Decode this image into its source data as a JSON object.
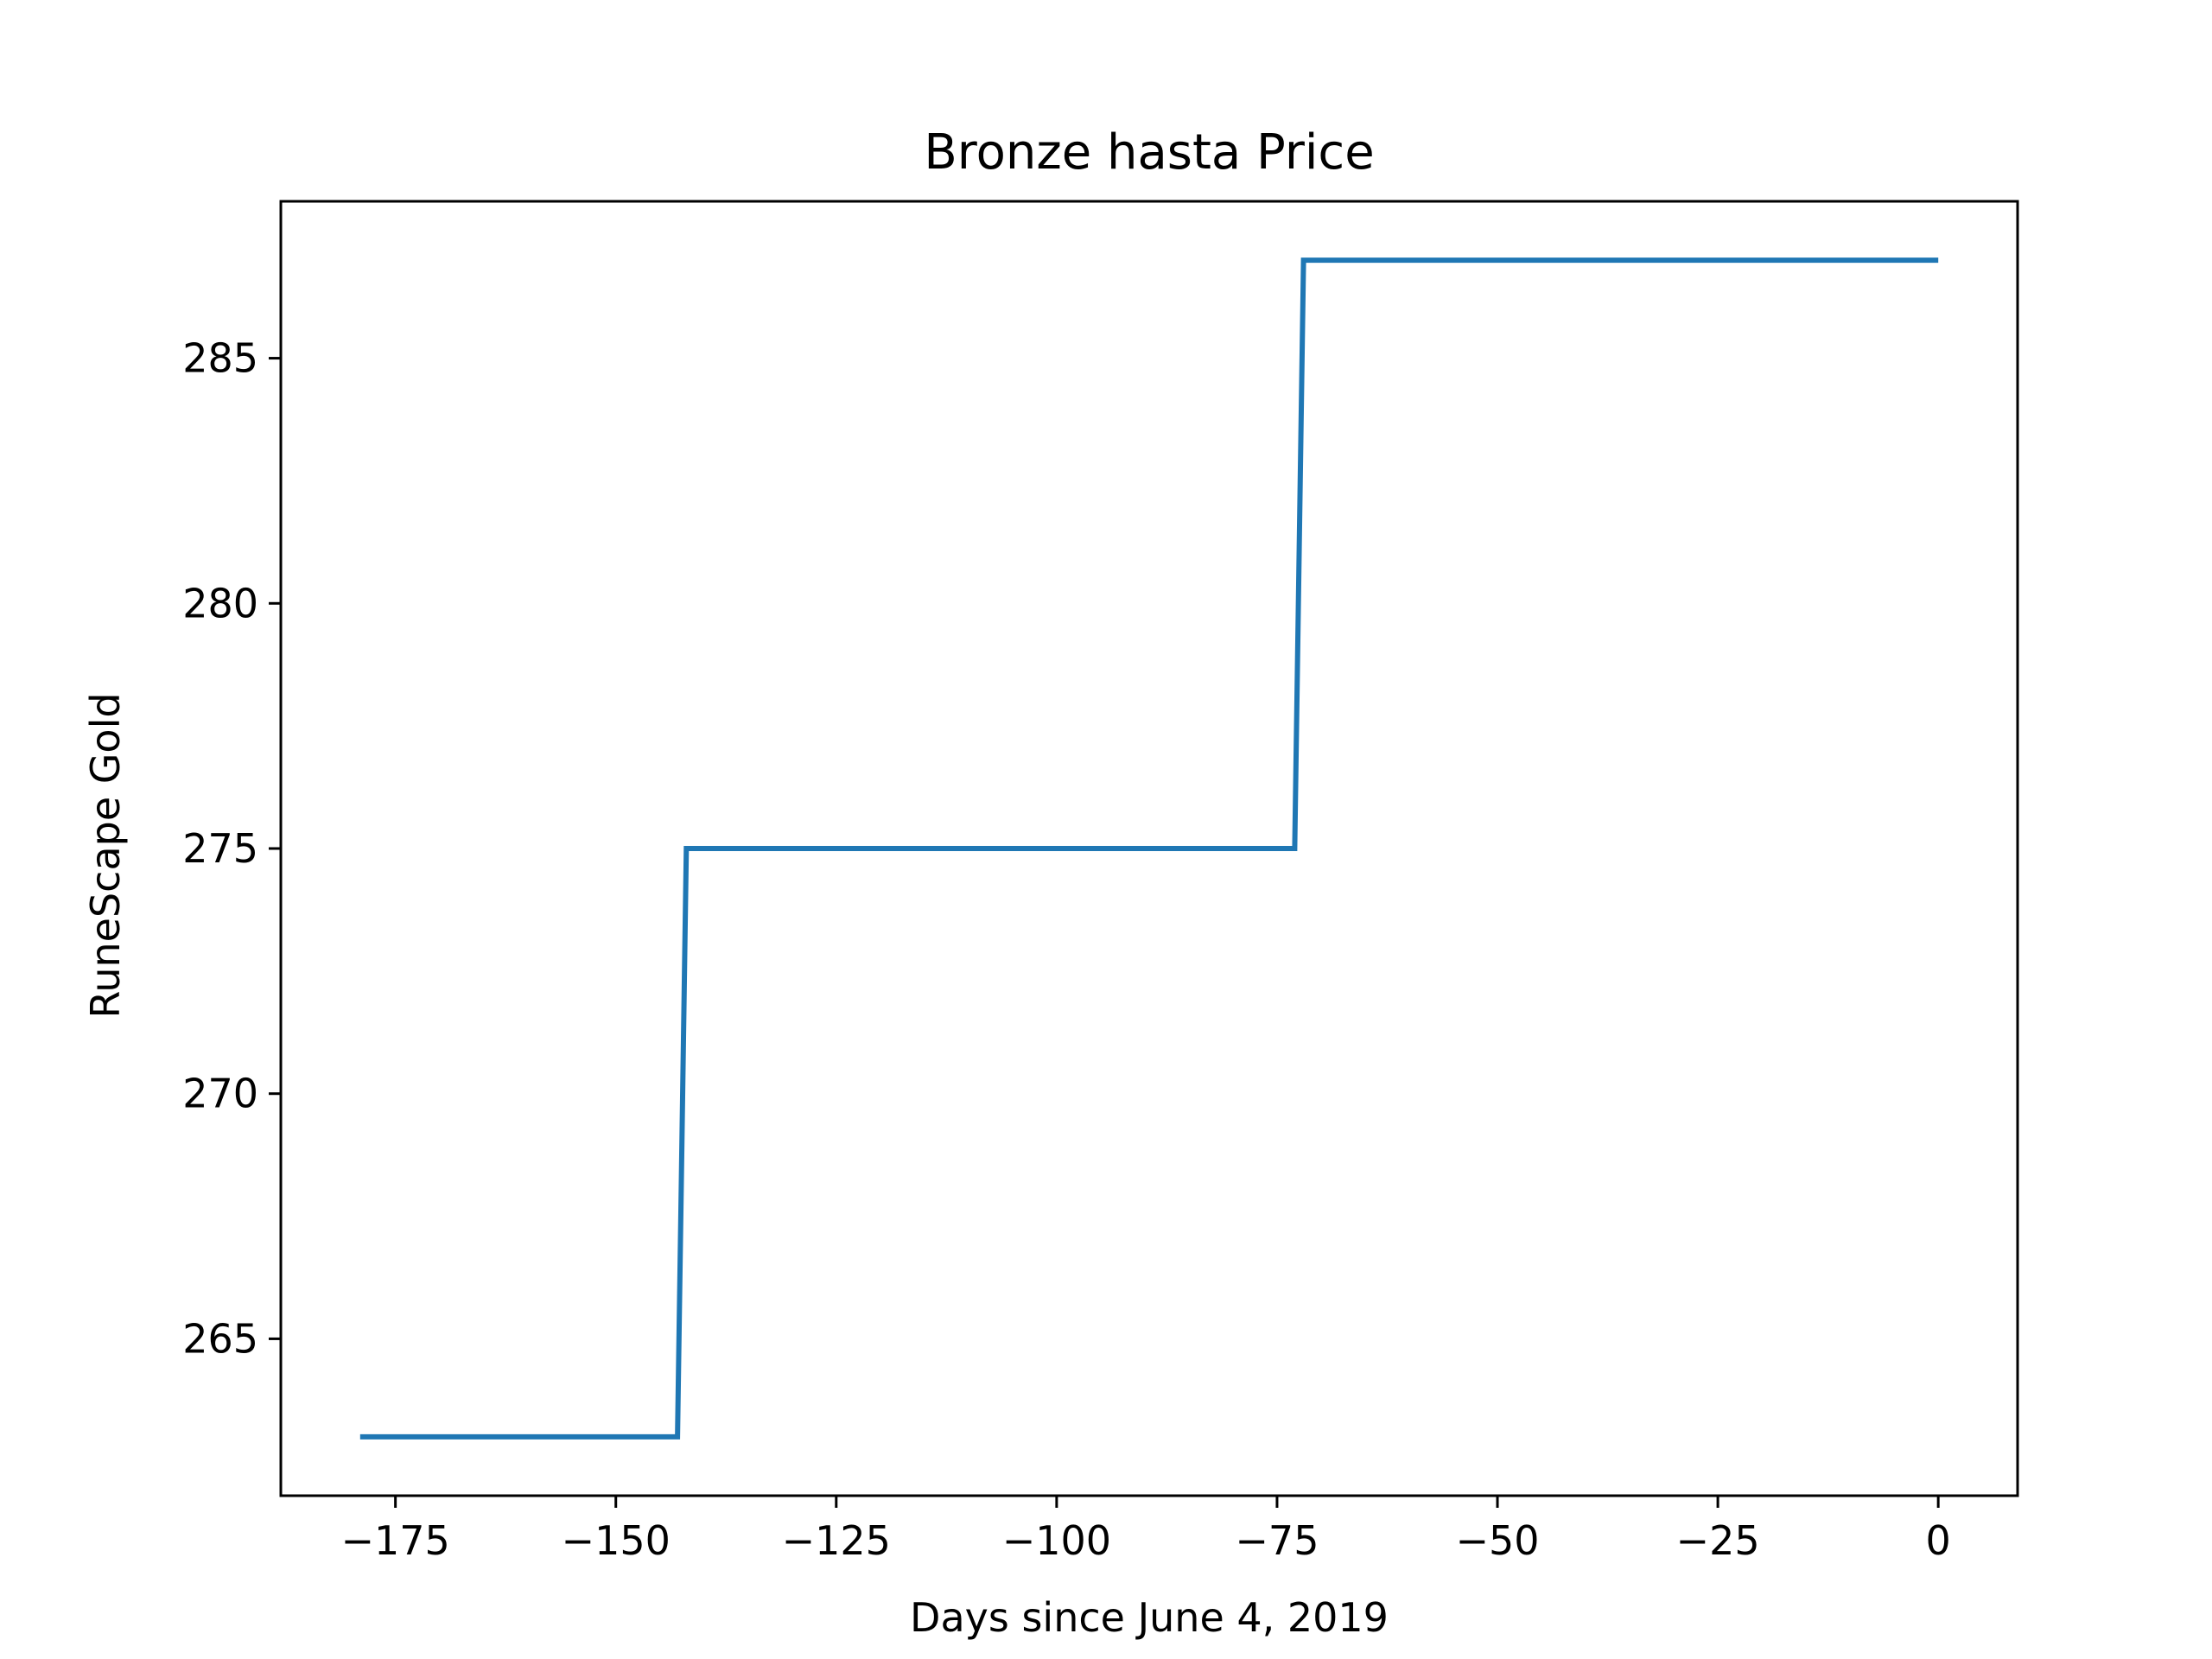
{
  "chart_data": {
    "type": "line",
    "title": "Bronze hasta Price",
    "xlabel": "Days since June 4, 2019",
    "ylabel": "RuneScape Gold",
    "xlim": [
      -188,
      9
    ],
    "ylim": [
      261.8,
      288.2
    ],
    "xticks": [
      {
        "value": -175,
        "label": "−175"
      },
      {
        "value": -150,
        "label": "−150"
      },
      {
        "value": -125,
        "label": "−125"
      },
      {
        "value": -100,
        "label": "−100"
      },
      {
        "value": -75,
        "label": "−75"
      },
      {
        "value": -50,
        "label": "−50"
      },
      {
        "value": -25,
        "label": "−25"
      },
      {
        "value": 0,
        "label": "0"
      }
    ],
    "yticks": [
      {
        "value": 265,
        "label": "265"
      },
      {
        "value": 270,
        "label": "270"
      },
      {
        "value": 275,
        "label": "275"
      },
      {
        "value": 280,
        "label": "280"
      },
      {
        "value": 285,
        "label": "285"
      }
    ],
    "grid": false,
    "series": [
      {
        "color": "#1f77b4",
        "x": [
          -179,
          -143,
          -142,
          -73,
          -72,
          0
        ],
        "y": [
          263,
          263,
          275,
          275,
          287,
          287
        ]
      }
    ]
  }
}
